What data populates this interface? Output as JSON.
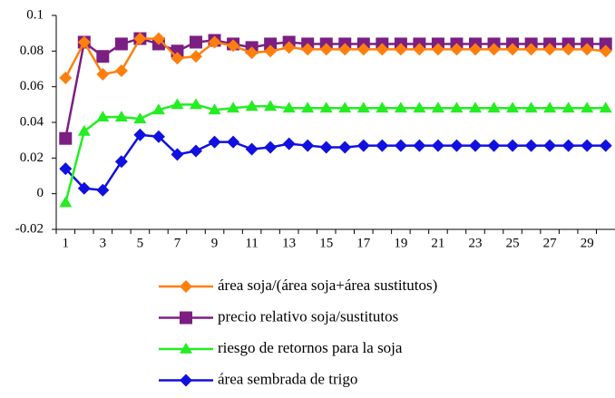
{
  "chart_data": {
    "type": "line",
    "categories": [
      1,
      null,
      3,
      null,
      5,
      null,
      7,
      null,
      9,
      null,
      11,
      null,
      13,
      null,
      15,
      null,
      17,
      null,
      19,
      null,
      21,
      null,
      23,
      null,
      25,
      null,
      27,
      null,
      29,
      null
    ],
    "ylim": [
      -0.02,
      0.1
    ],
    "yticks": [
      -0.02,
      0,
      0.02,
      0.04,
      0.06,
      0.08,
      0.1
    ],
    "legend": "bottom",
    "series": [
      {
        "name": "área soja/(área soja+área sustitutos)",
        "color": "#ff7f0e",
        "marker": "diamond",
        "values": [
          0.065,
          0.085,
          0.067,
          0.069,
          0.087,
          0.087,
          0.076,
          0.077,
          0.085,
          0.083,
          0.079,
          0.08,
          0.082,
          0.081,
          0.081,
          0.081,
          0.081,
          0.081,
          0.081,
          0.081,
          0.081,
          0.081,
          0.081,
          0.081,
          0.081,
          0.081,
          0.081,
          0.081,
          0.081,
          0.08
        ]
      },
      {
        "name": "precio relativo soja/sustitutos",
        "color": "#7b1f82",
        "marker": "square",
        "values": [
          0.031,
          0.085,
          0.077,
          0.084,
          0.087,
          0.084,
          0.08,
          0.085,
          0.086,
          0.084,
          0.082,
          0.084,
          0.085,
          0.084,
          0.084,
          0.084,
          0.084,
          0.084,
          0.084,
          0.084,
          0.084,
          0.084,
          0.084,
          0.084,
          0.084,
          0.084,
          0.084,
          0.084,
          0.084,
          0.084
        ]
      },
      {
        "name": "riesgo de retornos para la soja",
        "color": "#22ee22",
        "marker": "triangle",
        "values": [
          -0.005,
          0.035,
          0.043,
          0.043,
          0.042,
          0.047,
          0.05,
          0.05,
          0.047,
          0.048,
          0.049,
          0.049,
          0.048,
          0.048,
          0.048,
          0.048,
          0.048,
          0.048,
          0.048,
          0.048,
          0.048,
          0.048,
          0.048,
          0.048,
          0.048,
          0.048,
          0.048,
          0.048,
          0.048,
          0.048
        ]
      },
      {
        "name": "área sembrada de trigo",
        "color": "#1010e0",
        "marker": "diamond",
        "values": [
          0.014,
          0.003,
          0.002,
          0.018,
          0.033,
          0.032,
          0.022,
          0.024,
          0.029,
          0.029,
          0.025,
          0.026,
          0.028,
          0.027,
          0.026,
          0.026,
          0.027,
          0.027,
          0.027,
          0.027,
          0.027,
          0.027,
          0.027,
          0.027,
          0.027,
          0.027,
          0.027,
          0.027,
          0.027,
          0.027
        ]
      }
    ]
  }
}
